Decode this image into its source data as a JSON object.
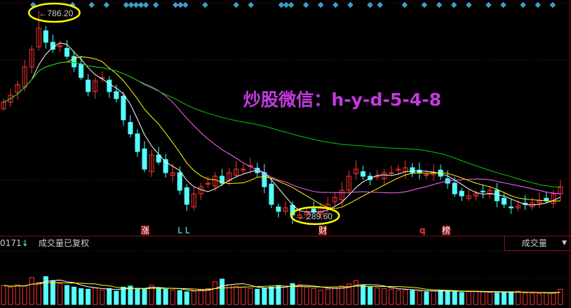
{
  "chart_data": {
    "type": "candlestick",
    "closes": [
      573.1,
      589.5,
      614.1,
      655.1,
      696.1,
      745.3,
      712.5,
      696.1,
      704.3,
      679.7,
      655.1,
      630.5,
      597.7,
      622.3,
      630.5,
      597.7,
      581.3,
      532.1,
      499.4,
      458.4,
      417.4,
      450.2,
      433.8,
      409.2,
      409.2,
      368.2,
      335.5,
      360.1,
      376.5,
      384.7,
      401.0,
      384.7,
      409.2,
      417.4,
      417.4,
      425.6,
      409.2,
      376.5,
      335.5,
      319.1,
      327.3,
      310.9,
      310.9,
      319.1,
      319.1,
      327.3,
      335.5,
      351.9,
      368.2,
      401.0,
      417.4,
      401.0,
      392.8,
      401.0,
      409.2,
      409.2,
      417.4,
      420.7,
      409.2,
      409.2,
      404.3,
      409.2,
      401.0,
      384.7,
      360.1,
      355.1,
      355.1,
      360.1,
      365.0,
      368.2,
      343.7,
      335.5,
      327.3,
      332.2,
      335.5,
      338.8,
      343.7,
      343.7,
      360.1,
      376.5
    ],
    "volumes": [
      60,
      55,
      62,
      58,
      85,
      70,
      88,
      75,
      66,
      60,
      55,
      50,
      48,
      52,
      45,
      50,
      42,
      55,
      58,
      50,
      48,
      60,
      52,
      48,
      46,
      44,
      40,
      42,
      46,
      50,
      72,
      80,
      62,
      58,
      55,
      50,
      48,
      52,
      55,
      60,
      58,
      66,
      62,
      55,
      50,
      45,
      48,
      55,
      58,
      65,
      75,
      60,
      55,
      52,
      50,
      48,
      45,
      46,
      44,
      42,
      40,
      42,
      45,
      44,
      40,
      38,
      40,
      42,
      40,
      38,
      36,
      38,
      40,
      42,
      36,
      35,
      34,
      36,
      38,
      48
    ],
    "moving_averages": [
      {
        "period": 5,
        "color": "#ffffff"
      },
      {
        "period": 10,
        "color": "#ffff00"
      },
      {
        "period": 20,
        "color": "#ff66ff"
      },
      {
        "period": 60,
        "color": "#00cc00"
      }
    ],
    "up_color": "#ff3333",
    "down_color": "#54ffff",
    "annotations": {
      "high": "786.20",
      "low": "289.60"
    },
    "ylim": [
      260,
      800
    ]
  },
  "header": {
    "code_fragment": "0171",
    "arrow": "↓",
    "label": "成交量已复权",
    "indicator": "成交量",
    "dropdown": "▼"
  },
  "watermark": "炒股微信：h-y-d-5-4-8",
  "markers": [
    {
      "text": "涨",
      "color": "#ffffff",
      "bg": "#8a1010"
    },
    {
      "text": "L L",
      "color": "#54ffff",
      "bg": ""
    },
    {
      "text": "财",
      "color": "#ffffff",
      "bg": "#8a1010"
    },
    {
      "text": "q",
      "color": "#ff3333",
      "bg": ""
    },
    {
      "text": "榜",
      "color": "#ffffff",
      "bg": "#8a1010"
    }
  ]
}
